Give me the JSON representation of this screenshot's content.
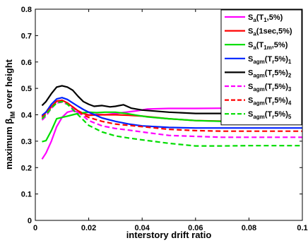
{
  "chart_data": {
    "type": "line",
    "xlabel": "interstory drift ratio",
    "ylabel": {
      "main": "maximum β",
      "sub": "IM",
      "rest": " over height"
    },
    "xlim": [
      0,
      0.1
    ],
    "ylim": [
      0,
      0.8
    ],
    "xticks": [
      0,
      0.02,
      0.04,
      0.06,
      0.08,
      0.1
    ],
    "xtick_labels": [
      "0",
      "0.02",
      "0.04",
      "0.06",
      "0.08",
      "0.1"
    ],
    "yticks": [
      0,
      0.1,
      0.2,
      0.3,
      0.4,
      0.5,
      0.6,
      0.7,
      0.8
    ],
    "ytick_labels": [
      "0",
      "0.1",
      "0.2",
      "0.3",
      "0.4",
      "0.5",
      "0.6",
      "0.7",
      "0.8"
    ],
    "grid": false,
    "legend_position": "top-right",
    "series": [
      {
        "name": "Sa(T1,5%)",
        "label_parts": [
          [
            "S",
            ""
          ],
          [
            "a",
            "sub"
          ],
          [
            "(T",
            ""
          ],
          [
            "1",
            "sub"
          ],
          [
            ",5%)",
            ""
          ]
        ],
        "color": "#ff00ff",
        "dash": "solid",
        "x": [
          0.0025,
          0.004,
          0.006,
          0.008,
          0.01,
          0.012,
          0.014,
          0.016,
          0.018,
          0.02,
          0.023,
          0.026,
          0.03,
          0.034,
          0.038,
          0.042,
          0.05,
          0.06,
          0.07,
          0.08,
          0.09,
          0.1
        ],
        "y": [
          0.232,
          0.255,
          0.3,
          0.355,
          0.39,
          0.41,
          0.415,
          0.41,
          0.405,
          0.4,
          0.402,
          0.4,
          0.405,
          0.41,
          0.415,
          0.422,
          0.424,
          0.424,
          0.425,
          0.425,
          0.425,
          0.425
        ]
      },
      {
        "name": "Sa(1sec,5%)",
        "label_parts": [
          [
            "S",
            ""
          ],
          [
            "a",
            "sub"
          ],
          [
            "(1sec,5%)",
            ""
          ]
        ],
        "color": "#ff0000",
        "dash": "solid",
        "x": [
          0.0025,
          0.004,
          0.006,
          0.008,
          0.01,
          0.012,
          0.014,
          0.016,
          0.018,
          0.02,
          0.025,
          0.03,
          0.035,
          0.04,
          0.05,
          0.06,
          0.07,
          0.08,
          0.09,
          0.1
        ],
        "y": [
          0.395,
          0.41,
          0.43,
          0.452,
          0.455,
          0.445,
          0.43,
          0.415,
          0.405,
          0.398,
          0.4,
          0.4,
          0.398,
          0.395,
          0.385,
          0.378,
          0.376,
          0.375,
          0.375,
          0.375
        ]
      },
      {
        "name": "Sa(T1m,5%)",
        "label_parts": [
          [
            "S",
            ""
          ],
          [
            "a",
            "sub"
          ],
          [
            "(T",
            ""
          ],
          [
            "1m",
            "sub"
          ],
          [
            ",5%)",
            ""
          ]
        ],
        "color": "#00dd00",
        "dash": "solid",
        "x": [
          0.0025,
          0.004,
          0.006,
          0.008,
          0.01,
          0.012,
          0.014,
          0.016,
          0.018,
          0.02,
          0.023,
          0.026,
          0.03,
          0.034,
          0.038,
          0.042,
          0.05,
          0.06,
          0.07,
          0.08,
          0.09,
          0.1
        ],
        "y": [
          0.298,
          0.302,
          0.34,
          0.385,
          0.39,
          0.395,
          0.4,
          0.405,
          0.408,
          0.41,
          0.408,
          0.41,
          0.41,
          0.405,
          0.398,
          0.392,
          0.385,
          0.378,
          0.375,
          0.375,
          0.375,
          0.375
        ]
      },
      {
        "name": "Sagm(Tr5%)1",
        "label_parts": [
          [
            "S",
            ""
          ],
          [
            "agm",
            "sub"
          ],
          [
            "(T",
            ""
          ],
          [
            "r",
            "sub"
          ],
          [
            "5%)",
            ""
          ],
          [
            "1",
            "sub"
          ]
        ],
        "color": "#0022ff",
        "dash": "solid",
        "x": [
          0.0025,
          0.004,
          0.006,
          0.008,
          0.01,
          0.012,
          0.014,
          0.016,
          0.018,
          0.02,
          0.025,
          0.03,
          0.035,
          0.04,
          0.05,
          0.06,
          0.07,
          0.08,
          0.09,
          0.1
        ],
        "y": [
          0.398,
          0.41,
          0.44,
          0.46,
          0.465,
          0.458,
          0.445,
          0.432,
          0.42,
          0.41,
          0.388,
          0.375,
          0.365,
          0.358,
          0.352,
          0.35,
          0.35,
          0.35,
          0.35,
          0.35
        ]
      },
      {
        "name": "Sagm(Tr5%)2",
        "label_parts": [
          [
            "S",
            ""
          ],
          [
            "agm",
            "sub"
          ],
          [
            "(T",
            ""
          ],
          [
            "r",
            "sub"
          ],
          [
            "5%)",
            ""
          ],
          [
            "2",
            "sub"
          ]
        ],
        "color": "#000000",
        "dash": "solid",
        "x": [
          0.0025,
          0.004,
          0.006,
          0.008,
          0.01,
          0.012,
          0.014,
          0.016,
          0.018,
          0.02,
          0.022,
          0.025,
          0.028,
          0.03,
          0.033,
          0.036,
          0.04,
          0.05,
          0.06,
          0.07,
          0.08,
          0.09,
          0.1
        ],
        "y": [
          0.435,
          0.45,
          0.48,
          0.505,
          0.51,
          0.505,
          0.493,
          0.47,
          0.45,
          0.44,
          0.432,
          0.435,
          0.43,
          0.432,
          0.438,
          0.425,
          0.418,
          0.41,
          0.405,
          0.405,
          0.405,
          0.405,
          0.405
        ]
      },
      {
        "name": "Sagm(Tr5%)3",
        "label_parts": [
          [
            "S",
            ""
          ],
          [
            "agm",
            "sub"
          ],
          [
            "(T",
            ""
          ],
          [
            "r",
            "sub"
          ],
          [
            "5%)",
            ""
          ],
          [
            "3",
            "sub"
          ]
        ],
        "color": "#ff00ff",
        "dash": "dashed",
        "x": [
          0.0025,
          0.004,
          0.006,
          0.008,
          0.01,
          0.012,
          0.014,
          0.016,
          0.018,
          0.02,
          0.025,
          0.03,
          0.035,
          0.04,
          0.05,
          0.06,
          0.07,
          0.08,
          0.09,
          0.1
        ],
        "y": [
          0.38,
          0.395,
          0.425,
          0.445,
          0.448,
          0.44,
          0.425,
          0.41,
          0.395,
          0.378,
          0.358,
          0.348,
          0.342,
          0.335,
          0.322,
          0.318,
          0.315,
          0.315,
          0.315,
          0.315
        ]
      },
      {
        "name": "Sagm(Tr5%)4",
        "label_parts": [
          [
            "S",
            ""
          ],
          [
            "agm",
            "sub"
          ],
          [
            "(T",
            ""
          ],
          [
            "r",
            "sub"
          ],
          [
            "5%)",
            ""
          ],
          [
            "4",
            "sub"
          ]
        ],
        "color": "#ff0000",
        "dash": "dashed",
        "x": [
          0.0025,
          0.004,
          0.006,
          0.008,
          0.01,
          0.012,
          0.014,
          0.016,
          0.018,
          0.02,
          0.025,
          0.03,
          0.035,
          0.04,
          0.05,
          0.06,
          0.07,
          0.08,
          0.09,
          0.1
        ],
        "y": [
          0.39,
          0.405,
          0.43,
          0.45,
          0.452,
          0.445,
          0.43,
          0.415,
          0.4,
          0.39,
          0.375,
          0.365,
          0.36,
          0.355,
          0.345,
          0.34,
          0.338,
          0.338,
          0.338,
          0.338
        ]
      },
      {
        "name": "Sagm(Tr5%)5",
        "label_parts": [
          [
            "S",
            ""
          ],
          [
            "agm",
            "sub"
          ],
          [
            "(T",
            ""
          ],
          [
            "r",
            "sub"
          ],
          [
            "5%)",
            ""
          ],
          [
            "5",
            "sub"
          ]
        ],
        "color": "#00dd00",
        "dash": "dashed",
        "x": [
          0.0025,
          0.004,
          0.006,
          0.008,
          0.01,
          0.012,
          0.014,
          0.016,
          0.018,
          0.02,
          0.025,
          0.03,
          0.035,
          0.04,
          0.05,
          0.06,
          0.07,
          0.08,
          0.09,
          0.1
        ],
        "y": [
          0.385,
          0.4,
          0.425,
          0.445,
          0.45,
          0.44,
          0.42,
          0.4,
          0.38,
          0.36,
          0.335,
          0.32,
          0.312,
          0.305,
          0.292,
          0.282,
          0.282,
          0.283,
          0.283,
          0.283
        ]
      }
    ]
  }
}
